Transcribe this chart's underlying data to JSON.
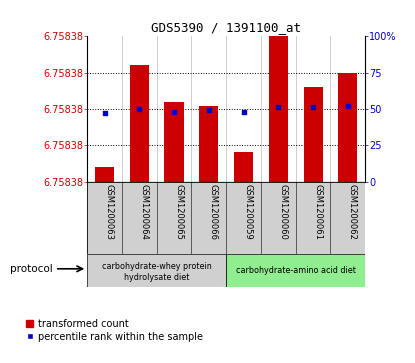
{
  "title": "GDS5390 / 1391100_at",
  "samples": [
    "GSM1200063",
    "GSM1200064",
    "GSM1200065",
    "GSM1200066",
    "GSM1200059",
    "GSM1200060",
    "GSM1200061",
    "GSM1200062"
  ],
  "bar_heights_relative": [
    0.1,
    0.8,
    0.55,
    0.52,
    0.2,
    1.0,
    0.65,
    0.75
  ],
  "percentile_ranks": [
    47,
    50,
    48,
    49,
    48,
    51,
    51,
    52
  ],
  "y_min": 6.758375,
  "y_max": 6.75839,
  "bar_color": "#cc0000",
  "dot_color": "#0000cc",
  "n_group1": 4,
  "n_group2": 4,
  "protocol_label1_line1": "carbohydrate-whey protein",
  "protocol_label1_line2": "hydrolysate diet",
  "protocol_label2": "carbohydrate-amino acid diet",
  "sample_bg": "#d0d0d0",
  "group1_bg": "#d0d0d0",
  "group2_bg": "#90ee90",
  "legend_bar": "transformed count",
  "legend_dot": "percentile rank within the sample",
  "ytick_label": "6.75838",
  "right_ytick_labels": [
    "0",
    "25",
    "50",
    "75",
    "100%"
  ],
  "right_ytick_vals": [
    0,
    25,
    50,
    75,
    100
  ],
  "grid_pcts": [
    25,
    50,
    75
  ],
  "title_fontsize": 9,
  "tick_fontsize": 7,
  "sample_fontsize": 6,
  "legend_fontsize": 7
}
